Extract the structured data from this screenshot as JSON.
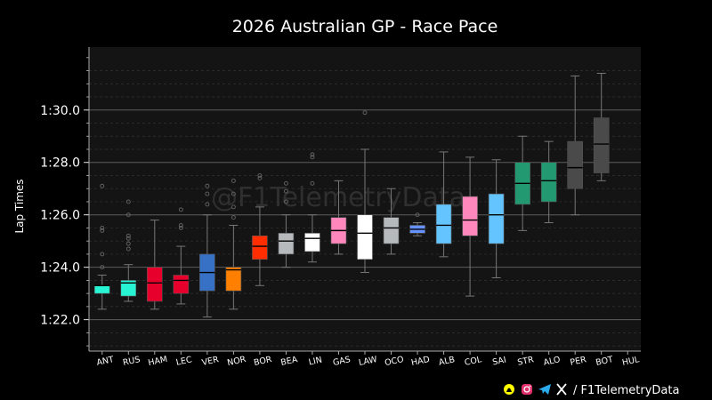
{
  "chart_data": {
    "type": "box",
    "title": "2026 Australian GP - Race Pace",
    "ylabel": "Lap Times",
    "ylim": [
      80.8,
      92.4
    ],
    "yticks": [
      {
        "value": 82,
        "label": "1:22.0"
      },
      {
        "value": 84,
        "label": "1:24.0"
      },
      {
        "value": 86,
        "label": "1:26.0"
      },
      {
        "value": 88,
        "label": "1:28.0"
      },
      {
        "value": 90,
        "label": "1:30.0"
      }
    ],
    "grid": true,
    "drivers": [
      {
        "name": "ANT",
        "color": "#27F4D2",
        "q1": 83.0,
        "median": 83.3,
        "q3": 83.3,
        "wlo": 82.4,
        "whi": 83.7,
        "outliers": [
          84.0,
          84.5,
          85.4,
          85.5,
          87.1
        ]
      },
      {
        "name": "RUS",
        "color": "#27F4D2",
        "q1": 82.9,
        "median": 83.4,
        "q3": 83.5,
        "wlo": 82.7,
        "whi": 84.1,
        "outliers": [
          84.7,
          84.9,
          85.1,
          85.2,
          86.0,
          86.5
        ]
      },
      {
        "name": "HAM",
        "color": "#E8002D",
        "q1": 82.7,
        "median": 83.4,
        "q3": 84.0,
        "wlo": 82.4,
        "whi": 85.8,
        "outliers": []
      },
      {
        "name": "LEC",
        "color": "#E8002D",
        "q1": 83.0,
        "median": 83.5,
        "q3": 83.7,
        "wlo": 82.6,
        "whi": 84.8,
        "outliers": [
          85.5,
          85.6,
          86.2
        ]
      },
      {
        "name": "VER",
        "color": "#3671C6",
        "q1": 83.1,
        "median": 83.8,
        "q3": 84.5,
        "wlo": 82.1,
        "whi": 86.0,
        "outliers": [
          86.4,
          86.8,
          87.1
        ]
      },
      {
        "name": "NOR",
        "color": "#FF8000",
        "q1": 83.1,
        "median": 83.9,
        "q3": 84.0,
        "wlo": 82.4,
        "whi": 85.6,
        "outliers": [
          85.9,
          86.3,
          86.8,
          87.3
        ]
      },
      {
        "name": "BOR",
        "color": "#FF2D00",
        "q1": 84.3,
        "median": 84.8,
        "q3": 85.2,
        "wlo": 83.3,
        "whi": 86.3,
        "outliers": [
          87.4,
          87.5
        ]
      },
      {
        "name": "BEA",
        "color": "#B6BABD",
        "q1": 84.5,
        "median": 85.0,
        "q3": 85.3,
        "wlo": 84.0,
        "whi": 86.0,
        "outliers": [
          86.5,
          86.9,
          87.2
        ]
      },
      {
        "name": "LIN",
        "color": "#FFFFFF",
        "q1": 84.6,
        "median": 85.1,
        "q3": 85.3,
        "wlo": 84.2,
        "whi": 86.0,
        "outliers": [
          87.2,
          88.2,
          88.3
        ]
      },
      {
        "name": "GAS",
        "color": "#FF87BC",
        "q1": 84.9,
        "median": 85.4,
        "q3": 85.9,
        "wlo": 84.5,
        "whi": 87.3,
        "outliers": []
      },
      {
        "name": "LAW",
        "color": "#FFFFFF",
        "q1": 84.3,
        "median": 85.3,
        "q3": 86.0,
        "wlo": 83.8,
        "whi": 88.5,
        "outliers": [
          89.9
        ]
      },
      {
        "name": "OCO",
        "color": "#B6BABD",
        "q1": 84.9,
        "median": 85.5,
        "q3": 85.9,
        "wlo": 84.5,
        "whi": 87.0,
        "outliers": []
      },
      {
        "name": "HAD",
        "color": "#6692FF",
        "q1": 85.3,
        "median": 85.45,
        "q3": 85.6,
        "wlo": 85.2,
        "whi": 85.7,
        "outliers": [
          86.0
        ]
      },
      {
        "name": "ALB",
        "color": "#64C4FF",
        "q1": 84.9,
        "median": 85.6,
        "q3": 86.4,
        "wlo": 84.4,
        "whi": 88.4,
        "outliers": []
      },
      {
        "name": "COL",
        "color": "#FF87BC",
        "q1": 85.2,
        "median": 85.8,
        "q3": 86.7,
        "wlo": 82.9,
        "whi": 88.2,
        "outliers": []
      },
      {
        "name": "SAI",
        "color": "#64C4FF",
        "q1": 84.9,
        "median": 86.0,
        "q3": 86.8,
        "wlo": 83.6,
        "whi": 88.1,
        "outliers": []
      },
      {
        "name": "STR",
        "color": "#229971",
        "q1": 86.4,
        "median": 87.2,
        "q3": 88.0,
        "wlo": 85.4,
        "whi": 89.0,
        "outliers": []
      },
      {
        "name": "ALO",
        "color": "#229971",
        "q1": 86.5,
        "median": 87.3,
        "q3": 88.0,
        "wlo": 85.7,
        "whi": 88.8,
        "outliers": []
      },
      {
        "name": "PER",
        "color": "#4A4A4A",
        "q1": 87.0,
        "median": 87.8,
        "q3": 88.8,
        "wlo": 86.0,
        "whi": 91.3,
        "outliers": []
      },
      {
        "name": "BOT",
        "color": "#4A4A4A",
        "q1": 87.6,
        "median": 88.7,
        "q3": 89.7,
        "wlo": 87.3,
        "whi": 91.4,
        "outliers": []
      },
      {
        "name": "HUL",
        "color": "#000000",
        "q1": null,
        "median": null,
        "q3": null,
        "wlo": null,
        "whi": null,
        "outliers": []
      }
    ]
  },
  "watermark": "@F1TelemetryData",
  "footer": {
    "credit": "/ F1TelemetryData",
    "icons": [
      "snapchat-icon",
      "instagram-icon",
      "telegram-icon",
      "x-icon"
    ],
    "icon_colors": {
      "snapchat": "#FFFC00",
      "instagram": "#E1306C",
      "telegram": "#2AABEE",
      "x": "#FFFFFF"
    }
  }
}
